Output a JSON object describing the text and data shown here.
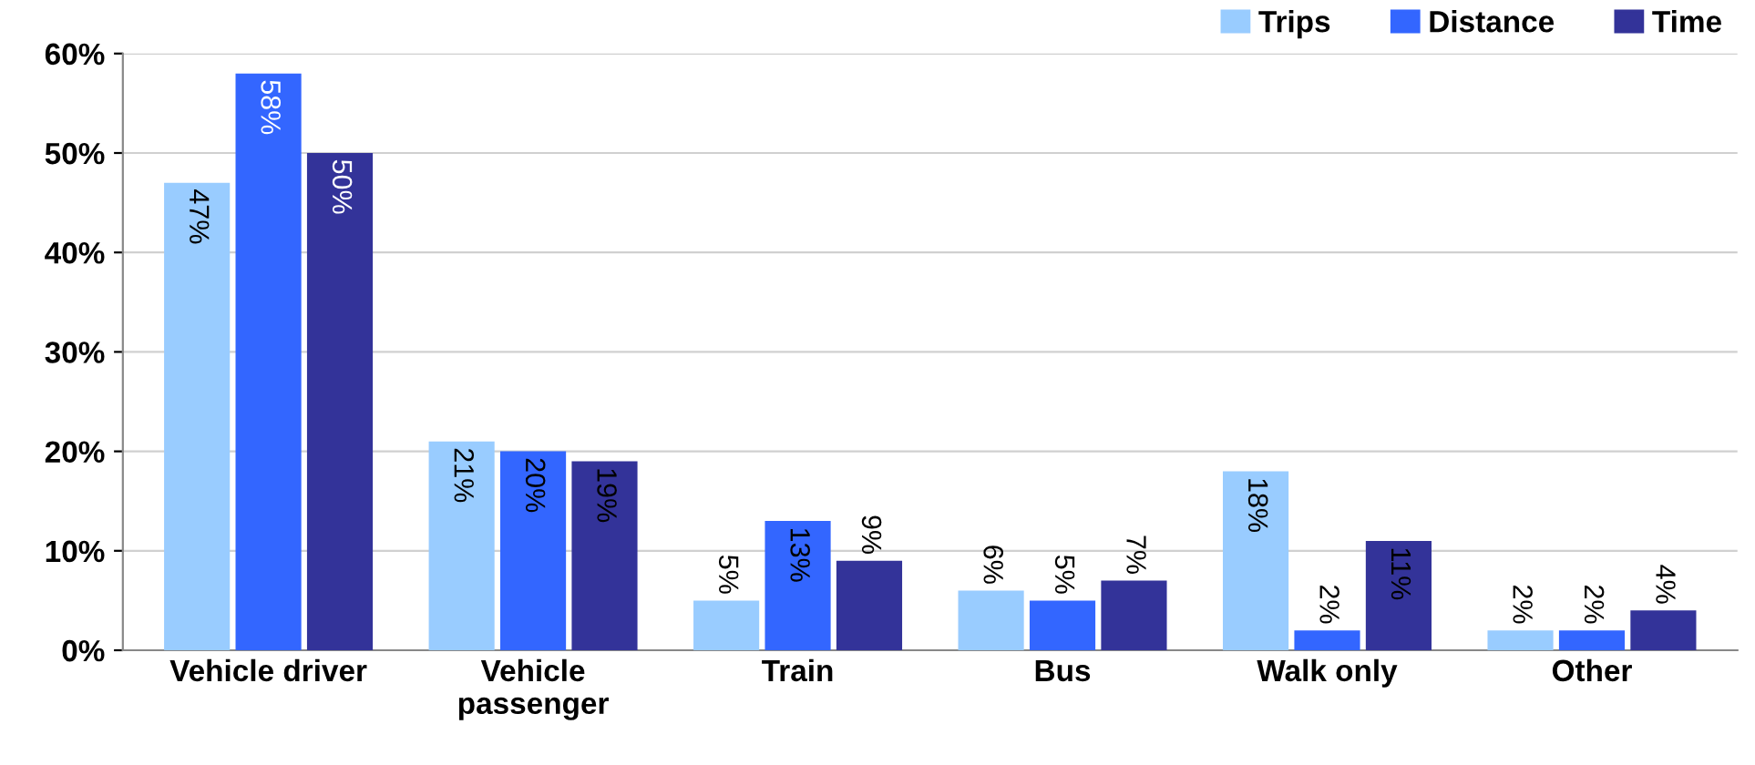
{
  "chart_data": {
    "type": "bar",
    "categories": [
      "Vehicle driver",
      "Vehicle\npassenger",
      "Train",
      "Bus",
      "Walk only",
      "Other"
    ],
    "series": [
      {
        "name": "Trips",
        "color": "#99ccff",
        "values": [
          47,
          21,
          5,
          6,
          18,
          2
        ],
        "value_labels": [
          "47%",
          "21%",
          "5%",
          "6%",
          "18%",
          "2%"
        ]
      },
      {
        "name": "Distance",
        "color": "#3366ff",
        "values": [
          58,
          20,
          13,
          5,
          2,
          2
        ],
        "value_labels": [
          "58%",
          "20%",
          "13%",
          "5%",
          "2%",
          "2%"
        ]
      },
      {
        "name": "Time",
        "color": "#333399",
        "values": [
          50,
          19,
          9,
          7,
          11,
          4
        ],
        "value_labels": [
          "50%",
          "19%",
          "9%",
          "7%",
          "11%",
          "4%"
        ]
      }
    ],
    "ylim": [
      0,
      60
    ],
    "yticks": [
      {
        "value": 0,
        "label": "0%"
      },
      {
        "value": 10,
        "label": "10%"
      },
      {
        "value": 20,
        "label": "20%"
      },
      {
        "value": 30,
        "label": "30%"
      },
      {
        "value": 40,
        "label": "40%"
      },
      {
        "value": 50,
        "label": "50%"
      },
      {
        "value": 60,
        "label": "60%"
      }
    ],
    "grid": "y",
    "legend": "top right"
  }
}
